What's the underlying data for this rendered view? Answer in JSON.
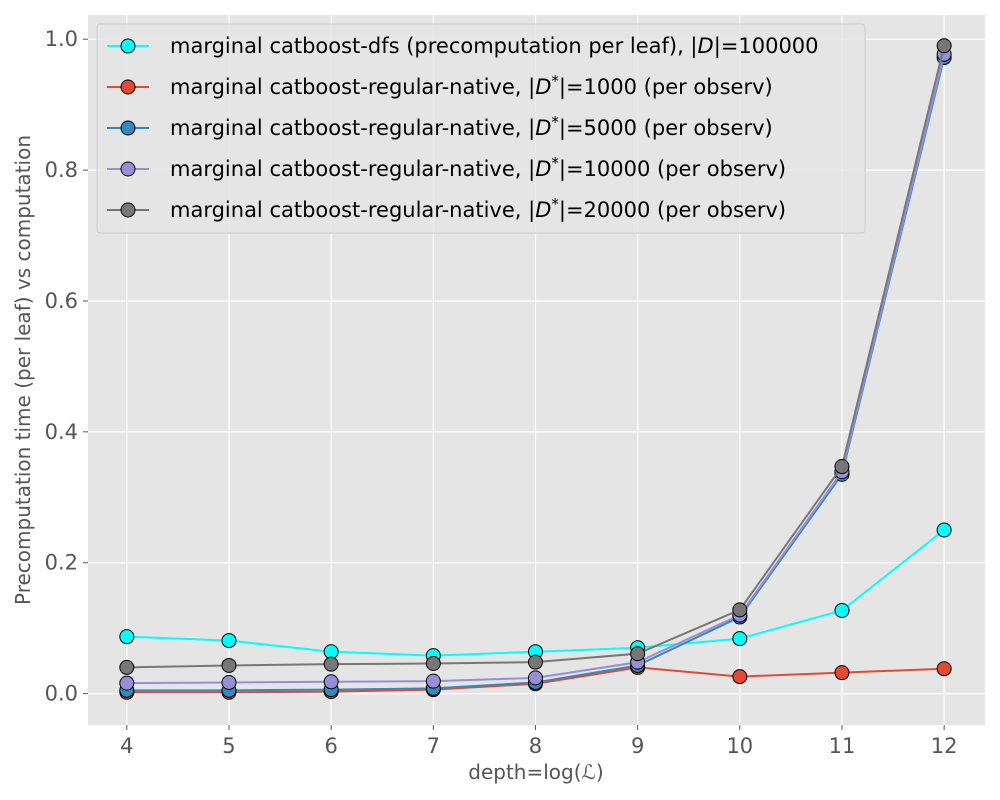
{
  "chart_data": {
    "type": "line",
    "title": "",
    "xlabel": "depth=log(ℒ)",
    "ylabel": "Precomputation time (per leaf) vs computation",
    "x": [
      4,
      5,
      6,
      7,
      8,
      9,
      10,
      11,
      12
    ],
    "x_ticks": [
      "4",
      "5",
      "6",
      "7",
      "8",
      "9",
      "10",
      "11",
      "12"
    ],
    "y_ticks": [
      "0.0",
      "0.2",
      "0.4",
      "0.6",
      "0.8",
      "1.0"
    ],
    "xlim": [
      3.62,
      12.4
    ],
    "ylim": [
      -0.048,
      1.037
    ],
    "grid": true,
    "legend_position": "top-left",
    "series": [
      {
        "name": "marginal catboost-dfs (precomputation per leaf), |D|=100000",
        "legend_parts": [
          "marginal catboost-dfs (precomputation per leaf), |",
          "D",
          "|=100000"
        ],
        "color": "#00ffff",
        "values": [
          0.087,
          0.081,
          0.064,
          0.058,
          0.064,
          0.07,
          0.084,
          0.127,
          0.25
        ]
      },
      {
        "name": "marginal catboost-regular-native, |D*|=1000 (per observ)",
        "legend_parts": [
          "marginal catboost-regular-native, |",
          "D",
          "*",
          "|=1000 (per observ)"
        ],
        "color": "#e24a33",
        "values": [
          0.002,
          0.002,
          0.003,
          0.006,
          0.015,
          0.04,
          0.026,
          0.032,
          0.038
        ]
      },
      {
        "name": "marginal catboost-regular-native, |D*|=5000 (per observ)",
        "legend_parts": [
          "marginal catboost-regular-native, |",
          "D",
          "*",
          "|=5000 (per observ)"
        ],
        "color": "#348abd",
        "values": [
          0.005,
          0.005,
          0.006,
          0.008,
          0.017,
          0.043,
          0.117,
          0.335,
          0.972
        ]
      },
      {
        "name": "marginal catboost-regular-native, |D*|=10000 (per observ)",
        "legend_parts": [
          "marginal catboost-regular-native, |",
          "D",
          "*",
          "|=10000 (per observ)"
        ],
        "color": "#988ed5",
        "values": [
          0.016,
          0.017,
          0.018,
          0.019,
          0.024,
          0.048,
          0.12,
          0.339,
          0.977
        ]
      },
      {
        "name": "marginal catboost-regular-native, |D*|=20000 (per observ)",
        "legend_parts": [
          "marginal catboost-regular-native, |",
          "D",
          "*",
          "|=20000 (per observ)"
        ],
        "color": "#777777",
        "values": [
          0.04,
          0.043,
          0.045,
          0.046,
          0.048,
          0.061,
          0.128,
          0.347,
          0.99
        ]
      }
    ]
  }
}
